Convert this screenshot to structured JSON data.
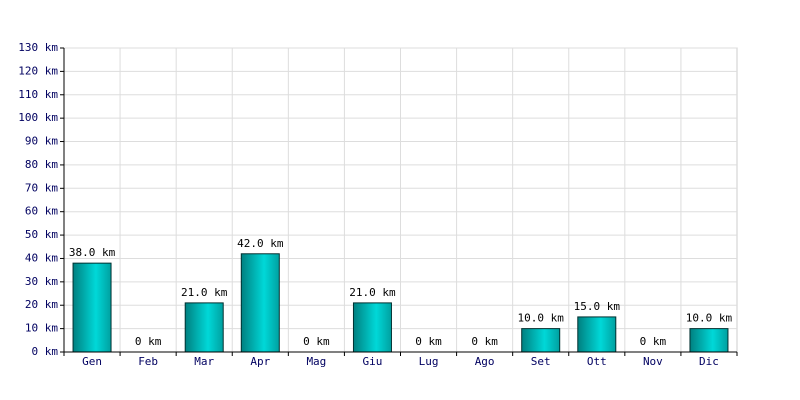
{
  "chart_data": {
    "type": "bar",
    "categories": [
      "Gen",
      "Feb",
      "Mar",
      "Apr",
      "Mag",
      "Giu",
      "Lug",
      "Ago",
      "Set",
      "Ott",
      "Nov",
      "Dic"
    ],
    "values": [
      38,
      0,
      21,
      42,
      0,
      21,
      0,
      0,
      10,
      15,
      0,
      10
    ],
    "value_labels": [
      "38.0 km",
      "0 km",
      "21.0 km",
      "42.0 km",
      "0 km",
      "21.0 km",
      "0 km",
      "0 km",
      "10.0 km",
      "15.0 km",
      "0 km",
      "10.0 km"
    ],
    "color": "#00d8d8",
    "ylim": [
      0,
      130
    ],
    "yticks": [
      {
        "value": 0,
        "label": "0 km"
      },
      {
        "value": 10,
        "label": "10 km"
      },
      {
        "value": 20,
        "label": "20 km"
      },
      {
        "value": 30,
        "label": "30 km"
      },
      {
        "value": 40,
        "label": "40 km"
      },
      {
        "value": 50,
        "label": "50 km"
      },
      {
        "value": 60,
        "label": "60 km"
      },
      {
        "value": 70,
        "label": "70 km"
      },
      {
        "value": 80,
        "label": "80 km"
      },
      {
        "value": 90,
        "label": "90 km"
      },
      {
        "value": 100,
        "label": "100 km"
      },
      {
        "value": 110,
        "label": "110 km"
      },
      {
        "value": 120,
        "label": "120 km"
      },
      {
        "value": 130,
        "label": "130 km"
      }
    ],
    "grid": true
  }
}
